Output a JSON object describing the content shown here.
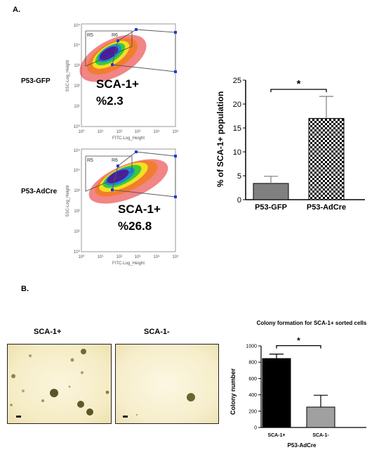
{
  "panel_a": {
    "letter": "A.",
    "flow": [
      {
        "row_label": "P53-GFP",
        "marker": "SCA-1+",
        "percent": "%2.3",
        "gate1": "R5",
        "gate2": "R6",
        "ylabel": "SSC-Log_Height",
        "xlabel": "FITC-Log_Height",
        "y_ticks": [
          "10⁰",
          "10¹",
          "10²",
          "10³",
          "10⁴",
          "10⁵"
        ],
        "x_ticks": [
          "10⁰",
          "10¹",
          "10²",
          "10³",
          "10⁴",
          "10⁵"
        ]
      },
      {
        "row_label": "P53-AdCre",
        "marker": "SCA-1+",
        "percent": "%26.8",
        "gate1": "R5",
        "gate2": "R6",
        "ylabel": "SSC-Log_Height",
        "xlabel": "FITC-Log_Height",
        "y_ticks": [
          "10⁰",
          "10¹",
          "10²",
          "10³",
          "10⁴",
          "10⁵"
        ],
        "x_ticks": [
          "10⁰",
          "10¹",
          "10²",
          "10³",
          "10⁴",
          "10⁵"
        ]
      }
    ]
  },
  "panel_b": {
    "letter": "B.",
    "images": [
      {
        "label": "SCA-1+"
      },
      {
        "label": "SCA-1-"
      }
    ]
  },
  "chart_data": [
    {
      "type": "bar",
      "title": "",
      "ylabel": "% of SCA-1+ population",
      "xlabel": "",
      "categories": [
        "P53-GFP",
        "P53-AdCre"
      ],
      "values": [
        3.4,
        17.0
      ],
      "errors": [
        1.5,
        4.6
      ],
      "ylim": [
        0,
        25
      ],
      "yticks": [
        0,
        5,
        10,
        15,
        20,
        25
      ],
      "significance": "*",
      "colors": [
        "#808080",
        "checkerboard"
      ]
    },
    {
      "type": "bar",
      "title": "Colony formation for SCA-1+ sorted cells",
      "ylabel": "Colony number",
      "xlabel": "P53-AdCre",
      "categories": [
        "SCA-1+",
        "SCA-1-"
      ],
      "values": [
        845,
        250
      ],
      "errors": [
        55,
        145
      ],
      "ylim": [
        0,
        1000
      ],
      "yticks": [
        0,
        200,
        400,
        600,
        800,
        1000
      ],
      "significance": "*",
      "colors": [
        "#000000",
        "#a0a0a0"
      ]
    }
  ]
}
